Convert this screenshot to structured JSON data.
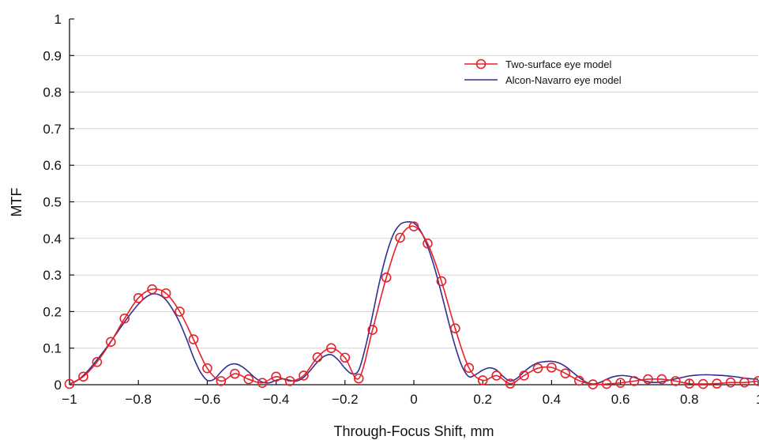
{
  "chart_data": {
    "type": "line",
    "xlabel": "Through-Focus Shift, mm",
    "ylabel": "MTF",
    "xlim": [
      -1,
      1
    ],
    "ylim": [
      0,
      1
    ],
    "xticks": [
      -1,
      -0.8,
      -0.6,
      -0.4,
      -0.2,
      0,
      0.2,
      0.4,
      0.6,
      0.8,
      1
    ],
    "xtick_labels": [
      "−1",
      "−0.8",
      "−0.6",
      "−0.4",
      "−0.2",
      "0",
      "0.2",
      "0.4",
      "0.6",
      "0.8",
      "1"
    ],
    "yticks": [
      0,
      0.1,
      0.2,
      0.3,
      0.4,
      0.5,
      0.6,
      0.7,
      0.8,
      0.9,
      1
    ],
    "ytick_labels": [
      "0",
      "0.1",
      "0.2",
      "0.3",
      "0.4",
      "0.5",
      "0.6",
      "0.7",
      "0.8",
      "0.9",
      "1"
    ],
    "grid": "horizontal",
    "legend_position": "top-right",
    "series": [
      {
        "name": "Two-surface eye model",
        "color": "#e8202a",
        "marker": "circle",
        "x": [
          -1,
          -0.96,
          -0.92,
          -0.88,
          -0.84,
          -0.8,
          -0.76,
          -0.72,
          -0.68,
          -0.64,
          -0.6,
          -0.56,
          -0.52,
          -0.48,
          -0.44,
          -0.4,
          -0.36,
          -0.32,
          -0.28,
          -0.24,
          -0.2,
          -0.16,
          -0.12,
          -0.08,
          -0.04,
          0,
          0.04,
          0.08,
          0.12,
          0.16,
          0.2,
          0.24,
          0.28,
          0.32,
          0.36,
          0.4,
          0.44,
          0.48,
          0.52,
          0.56,
          0.6,
          0.64,
          0.68,
          0.72,
          0.76,
          0.8,
          0.84,
          0.88,
          0.92,
          0.96,
          1
        ],
        "y": [
          0.002,
          0.022,
          0.062,
          0.117,
          0.181,
          0.237,
          0.261,
          0.25,
          0.2,
          0.124,
          0.045,
          0.01,
          0.03,
          0.015,
          0.005,
          0.022,
          0.01,
          0.025,
          0.075,
          0.1,
          0.074,
          0.017,
          0.15,
          0.293,
          0.402,
          0.433,
          0.386,
          0.283,
          0.154,
          0.046,
          0.012,
          0.025,
          0.003,
          0.025,
          0.045,
          0.047,
          0.031,
          0.011,
          0.001,
          0.002,
          0.005,
          0.01,
          0.015,
          0.015,
          0.01,
          0.003,
          0.002,
          0.003,
          0.006,
          0.006,
          0.01
        ]
      },
      {
        "name": "Alcon-Navarro eye model",
        "color": "#2e3191",
        "marker": "none",
        "x": [
          -1,
          -0.98,
          -0.96,
          -0.94,
          -0.92,
          -0.9,
          -0.88,
          -0.86,
          -0.84,
          -0.82,
          -0.8,
          -0.78,
          -0.76,
          -0.74,
          -0.72,
          -0.7,
          -0.68,
          -0.66,
          -0.64,
          -0.62,
          -0.6,
          -0.58,
          -0.56,
          -0.54,
          -0.52,
          -0.5,
          -0.48,
          -0.46,
          -0.44,
          -0.42,
          -0.4,
          -0.38,
          -0.36,
          -0.34,
          -0.32,
          -0.3,
          -0.28,
          -0.26,
          -0.24,
          -0.22,
          -0.2,
          -0.18,
          -0.16,
          -0.14,
          -0.12,
          -0.1,
          -0.08,
          -0.06,
          -0.04,
          -0.02,
          0,
          0.02,
          0.04,
          0.06,
          0.08,
          0.1,
          0.12,
          0.14,
          0.16,
          0.18,
          0.2,
          0.22,
          0.24,
          0.26,
          0.28,
          0.3,
          0.32,
          0.34,
          0.36,
          0.38,
          0.4,
          0.42,
          0.44,
          0.46,
          0.48,
          0.5,
          0.52,
          0.54,
          0.56,
          0.58,
          0.6,
          0.62,
          0.64,
          0.66,
          0.68,
          0.7,
          0.72,
          0.74,
          0.76,
          0.78,
          0.8,
          0.82,
          0.84,
          0.86,
          0.88,
          0.9,
          0.92,
          0.94,
          0.96,
          0.98,
          1
        ],
        "y": [
          0.002,
          0.01,
          0.025,
          0.045,
          0.068,
          0.092,
          0.118,
          0.145,
          0.172,
          0.197,
          0.22,
          0.238,
          0.248,
          0.246,
          0.232,
          0.205,
          0.17,
          0.125,
          0.075,
          0.035,
          0.012,
          0.015,
          0.035,
          0.052,
          0.057,
          0.05,
          0.035,
          0.018,
          0.007,
          0.005,
          0.012,
          0.016,
          0.012,
          0.01,
          0.02,
          0.04,
          0.062,
          0.078,
          0.082,
          0.068,
          0.045,
          0.03,
          0.04,
          0.105,
          0.19,
          0.28,
          0.355,
          0.41,
          0.438,
          0.445,
          0.442,
          0.42,
          0.378,
          0.32,
          0.25,
          0.175,
          0.105,
          0.05,
          0.022,
          0.028,
          0.04,
          0.046,
          0.04,
          0.022,
          0.01,
          0.018,
          0.035,
          0.05,
          0.06,
          0.063,
          0.064,
          0.06,
          0.05,
          0.035,
          0.02,
          0.007,
          0.002,
          0.006,
          0.015,
          0.022,
          0.025,
          0.024,
          0.02,
          0.013,
          0.008,
          0.006,
          0.008,
          0.012,
          0.016,
          0.02,
          0.024,
          0.026,
          0.027,
          0.027,
          0.026,
          0.025,
          0.023,
          0.021,
          0.018,
          0.016,
          0.015
        ]
      }
    ]
  }
}
